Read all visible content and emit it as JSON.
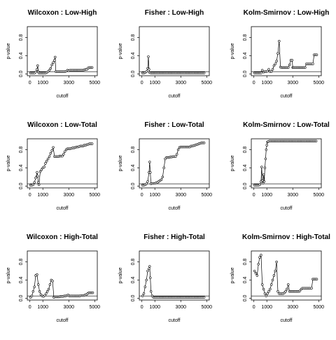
{
  "chart_data": [
    {
      "type": "line",
      "title": "Wilcoxon : Low-High",
      "xlabel": "cutoff",
      "ylabel": "p-value",
      "xlim": [
        0,
        5000
      ],
      "ylim": [
        0,
        1
      ],
      "xticks": [
        "0",
        "1000",
        "3000",
        "5000"
      ],
      "yticks": [
        "0.0",
        "0.4",
        "0.8"
      ],
      "hline": 0.05,
      "x": [
        50,
        150,
        250,
        350,
        450,
        550,
        600,
        650,
        700,
        800,
        900,
        1000,
        1100,
        1200,
        1300,
        1400,
        1500,
        1600,
        1700,
        1800,
        1900,
        1950,
        2000,
        2100,
        2200,
        2300,
        2400,
        2500,
        2600,
        2700,
        2800,
        2900,
        3000,
        3100,
        3200,
        3300,
        3400,
        3500,
        3600,
        3700,
        3800,
        3900,
        4000,
        4100,
        4200,
        4300,
        4400,
        4500,
        4600,
        4700,
        4800
      ],
      "y": [
        0.02,
        0.02,
        0.02,
        0.02,
        0.04,
        0.1,
        0.18,
        0.05,
        0.02,
        0.02,
        0.02,
        0.02,
        0.02,
        0.02,
        0.03,
        0.05,
        0.08,
        0.12,
        0.2,
        0.25,
        0.3,
        0.37,
        0.05,
        0.05,
        0.05,
        0.05,
        0.05,
        0.05,
        0.05,
        0.05,
        0.06,
        0.08,
        0.07,
        0.08,
        0.08,
        0.08,
        0.08,
        0.08,
        0.08,
        0.08,
        0.08,
        0.08,
        0.08,
        0.08,
        0.09,
        0.1,
        0.1,
        0.13,
        0.14,
        0.14,
        0.14
      ]
    },
    {
      "type": "line",
      "title": "Fisher : Low-High",
      "xlabel": "cutoff",
      "ylabel": "p-value",
      "xlim": [
        0,
        5000
      ],
      "ylim": [
        0,
        1
      ],
      "xticks": [
        "0",
        "1000",
        "3000",
        "5000"
      ],
      "yticks": [
        "0.0",
        "0.4",
        "0.8"
      ],
      "hline": 0.05,
      "x": [
        50,
        150,
        250,
        350,
        450,
        500,
        550,
        600,
        700,
        800,
        900,
        1000,
        1100,
        1200,
        1300,
        1400,
        1500,
        1600,
        1700,
        1800,
        1900,
        2000,
        2100,
        2200,
        2300,
        2400,
        2500,
        2600,
        2700,
        2800,
        2900,
        3000,
        3100,
        3200,
        3300,
        3400,
        3500,
        3600,
        3700,
        3800,
        3900,
        4000,
        4100,
        4200,
        4300,
        4400,
        4500,
        4600,
        4700,
        4800
      ],
      "y": [
        0.02,
        0.02,
        0.03,
        0.05,
        0.12,
        0.38,
        0.1,
        0.03,
        0.02,
        0.02,
        0.02,
        0.02,
        0.02,
        0.02,
        0.02,
        0.02,
        0.02,
        0.02,
        0.02,
        0.02,
        0.02,
        0.02,
        0.02,
        0.02,
        0.02,
        0.02,
        0.02,
        0.02,
        0.02,
        0.02,
        0.02,
        0.02,
        0.02,
        0.02,
        0.02,
        0.02,
        0.02,
        0.02,
        0.02,
        0.02,
        0.02,
        0.02,
        0.02,
        0.02,
        0.02,
        0.02,
        0.02,
        0.02,
        0.02,
        0.02
      ]
    },
    {
      "type": "line",
      "title": "Kolm-Smirnov : Low-High",
      "xlabel": "cutoff",
      "ylabel": "p-value",
      "xlim": [
        0,
        5000
      ],
      "ylim": [
        0,
        1
      ],
      "xticks": [
        "0",
        "1000",
        "3000",
        "5000"
      ],
      "yticks": [
        "0.0",
        "0.4",
        "0.8"
      ],
      "hline": 0.05,
      "x": [
        50,
        150,
        250,
        350,
        450,
        550,
        650,
        750,
        850,
        950,
        1050,
        1150,
        1250,
        1350,
        1450,
        1550,
        1650,
        1750,
        1850,
        1950,
        2050,
        2150,
        2250,
        2350,
        2450,
        2550,
        2650,
        2750,
        2850,
        2950,
        3000,
        3050,
        3150,
        3250,
        3350,
        3450,
        3550,
        3650,
        3750,
        3850,
        3950,
        4050,
        4150,
        4250,
        4350,
        4450,
        4550,
        4650,
        4750,
        4850
      ],
      "y": [
        0.02,
        0.02,
        0.02,
        0.02,
        0.02,
        0.02,
        0.08,
        0.04,
        0.05,
        0.05,
        0.06,
        0.1,
        0.05,
        0.05,
        0.1,
        0.18,
        0.22,
        0.28,
        0.45,
        0.72,
        0.15,
        0.14,
        0.14,
        0.14,
        0.14,
        0.14,
        0.14,
        0.2,
        0.3,
        0.3,
        0.14,
        0.14,
        0.14,
        0.14,
        0.14,
        0.14,
        0.14,
        0.14,
        0.14,
        0.14,
        0.14,
        0.22,
        0.22,
        0.22,
        0.22,
        0.22,
        0.22,
        0.42,
        0.42,
        0.42
      ]
    },
    {
      "type": "line",
      "title": "Wilcoxon : Low-Total",
      "xlabel": "cutoff",
      "ylabel": "p-value",
      "xlim": [
        0,
        5000
      ],
      "ylim": [
        0,
        1
      ],
      "xticks": [
        "0",
        "1000",
        "3000",
        "5000"
      ],
      "yticks": [
        "0.0",
        "0.4",
        "0.8"
      ],
      "hline": 0.05,
      "x": [
        50,
        150,
        250,
        350,
        450,
        550,
        600,
        650,
        700,
        800,
        900,
        1000,
        1100,
        1200,
        1300,
        1400,
        1500,
        1600,
        1700,
        1800,
        1900,
        2000,
        2100,
        2200,
        2300,
        2400,
        2500,
        2600,
        2700,
        2800,
        2900,
        3000,
        3100,
        3200,
        3300,
        3400,
        3500,
        3600,
        3700,
        3800,
        3900,
        4000,
        4100,
        4200,
        4300,
        4400,
        4500,
        4600,
        4700,
        4800
      ],
      "y": [
        0.02,
        0.02,
        0.03,
        0.08,
        0.18,
        0.3,
        0.22,
        0.08,
        0.03,
        0.32,
        0.36,
        0.4,
        0.42,
        0.5,
        0.55,
        0.6,
        0.65,
        0.72,
        0.78,
        0.85,
        0.65,
        0.65,
        0.65,
        0.65,
        0.66,
        0.66,
        0.66,
        0.7,
        0.76,
        0.8,
        0.82,
        0.82,
        0.82,
        0.83,
        0.84,
        0.84,
        0.85,
        0.86,
        0.86,
        0.87,
        0.88,
        0.88,
        0.88,
        0.9,
        0.9,
        0.91,
        0.92,
        0.93,
        0.93,
        0.93
      ]
    },
    {
      "type": "line",
      "title": "Fisher : Low-Total",
      "xlabel": "cutoff",
      "ylabel": "p-value",
      "xlim": [
        0,
        5000
      ],
      "ylim": [
        0,
        1
      ],
      "xticks": [
        "0",
        "1000",
        "3000",
        "5000"
      ],
      "yticks": [
        "0.0",
        "0.4",
        "0.8"
      ],
      "hline": 0.05,
      "x": [
        50,
        150,
        250,
        350,
        450,
        550,
        600,
        650,
        700,
        800,
        900,
        1000,
        1100,
        1200,
        1300,
        1400,
        1500,
        1600,
        1700,
        1800,
        1900,
        2000,
        2100,
        2200,
        2300,
        2400,
        2500,
        2600,
        2700,
        2800,
        2900,
        3000,
        3100,
        3200,
        3300,
        3400,
        3500,
        3600,
        3700,
        3800,
        3900,
        4000,
        4100,
        4200,
        4300,
        4400,
        4500,
        4600,
        4700,
        4800
      ],
      "y": [
        0.02,
        0.02,
        0.03,
        0.05,
        0.1,
        0.3,
        0.53,
        0.3,
        0.05,
        0.06,
        0.06,
        0.06,
        0.07,
        0.08,
        0.1,
        0.12,
        0.14,
        0.2,
        0.4,
        0.6,
        0.63,
        0.63,
        0.63,
        0.64,
        0.64,
        0.65,
        0.65,
        0.65,
        0.7,
        0.8,
        0.85,
        0.86,
        0.86,
        0.86,
        0.86,
        0.86,
        0.86,
        0.86,
        0.86,
        0.88,
        0.88,
        0.89,
        0.9,
        0.91,
        0.92,
        0.93,
        0.94,
        0.95,
        0.95,
        0.95
      ]
    },
    {
      "type": "line",
      "title": "Kolm-Smirnov : Low-Total",
      "xlabel": "cutoff",
      "ylabel": "p-value",
      "xlim": [
        0,
        5000
      ],
      "ylim": [
        0,
        1
      ],
      "xticks": [
        "0",
        "1000",
        "3000",
        "5000"
      ],
      "yticks": [
        "0.0",
        "0.4",
        "0.8"
      ],
      "hline": 0.05,
      "x": [
        50,
        150,
        250,
        350,
        450,
        550,
        600,
        650,
        700,
        750,
        800,
        850,
        900,
        950,
        1000,
        1050,
        1100,
        1200,
        1300,
        1400,
        1500,
        1600,
        1700,
        1800,
        1900,
        2000,
        2100,
        2200,
        2300,
        2400,
        2500,
        2600,
        2700,
        2800,
        2900,
        3000,
        3100,
        3200,
        3300,
        3400,
        3500,
        3600,
        3700,
        3800,
        3900,
        4000,
        4100,
        4200,
        4300,
        4400,
        4500,
        4600,
        4700,
        4800
      ],
      "y": [
        0.02,
        0.02,
        0.02,
        0.02,
        0.03,
        0.1,
        0.42,
        0.12,
        0.06,
        0.25,
        0.1,
        0.4,
        0.6,
        0.8,
        0.9,
        0.97,
        0.98,
        0.99,
        0.99,
        0.99,
        0.99,
        0.99,
        0.99,
        0.99,
        0.99,
        0.99,
        0.99,
        0.99,
        0.99,
        0.99,
        0.99,
        0.99,
        0.99,
        0.99,
        0.99,
        0.99,
        0.99,
        0.99,
        0.99,
        0.99,
        0.99,
        0.99,
        0.99,
        0.99,
        0.99,
        0.99,
        0.99,
        0.99,
        0.99,
        0.99,
        0.99,
        0.99,
        0.99,
        0.99
      ]
    },
    {
      "type": "line",
      "title": "Wilcoxon : High-Total",
      "xlabel": "cutoff",
      "ylabel": "p-value",
      "xlim": [
        0,
        5000
      ],
      "ylim": [
        0,
        1
      ],
      "xticks": [
        "0",
        "1000",
        "3000",
        "5000"
      ],
      "yticks": [
        "0.0",
        "0.4",
        "0.8"
      ],
      "hline": 0.05,
      "x": [
        50,
        150,
        250,
        350,
        450,
        550,
        650,
        750,
        850,
        950,
        1050,
        1150,
        1250,
        1350,
        1450,
        1550,
        1650,
        1750,
        1850,
        1950,
        2050,
        2150,
        2250,
        2350,
        2450,
        2550,
        2650,
        2750,
        2850,
        2950,
        3050,
        3150,
        3250,
        3350,
        3450,
        3550,
        3650,
        3750,
        3850,
        3950,
        4050,
        4150,
        4250,
        4350,
        4450,
        4550,
        4650,
        4750,
        4850
      ],
      "y": [
        0.02,
        0.05,
        0.15,
        0.25,
        0.5,
        0.52,
        0.3,
        0.15,
        0.08,
        0.05,
        0.04,
        0.06,
        0.1,
        0.15,
        0.2,
        0.3,
        0.4,
        0.38,
        0.02,
        0.03,
        0.03,
        0.03,
        0.03,
        0.04,
        0.04,
        0.04,
        0.05,
        0.05,
        0.06,
        0.07,
        0.05,
        0.05,
        0.05,
        0.05,
        0.05,
        0.05,
        0.05,
        0.05,
        0.05,
        0.06,
        0.06,
        0.06,
        0.07,
        0.08,
        0.1,
        0.12,
        0.12,
        0.12,
        0.12
      ]
    },
    {
      "type": "line",
      "title": "Fisher : High-Total",
      "xlabel": "cutoff",
      "ylabel": "p-value",
      "xlim": [
        0,
        5000
      ],
      "ylim": [
        0,
        1
      ],
      "xticks": [
        "0",
        "1000",
        "3000",
        "5000"
      ],
      "yticks": [
        "0.0",
        "0.4",
        "0.8"
      ],
      "hline": 0.05,
      "x": [
        50,
        150,
        250,
        350,
        450,
        550,
        600,
        650,
        700,
        800,
        900,
        1000,
        1100,
        1200,
        1300,
        1400,
        1500,
        1600,
        1700,
        1800,
        1900,
        2000,
        2100,
        2200,
        2300,
        2400,
        2500,
        2600,
        2700,
        2800,
        2900,
        3000,
        3100,
        3200,
        3300,
        3400,
        3500,
        3600,
        3700,
        3800,
        3900,
        4000,
        4100,
        4200,
        4300,
        4400,
        4500,
        4600,
        4700,
        4800
      ],
      "y": [
        0.05,
        0.1,
        0.25,
        0.4,
        0.6,
        0.65,
        0.7,
        0.45,
        0.15,
        0.05,
        0.02,
        0.02,
        0.02,
        0.02,
        0.02,
        0.02,
        0.02,
        0.02,
        0.02,
        0.02,
        0.02,
        0.02,
        0.02,
        0.02,
        0.02,
        0.02,
        0.02,
        0.02,
        0.02,
        0.02,
        0.02,
        0.02,
        0.02,
        0.02,
        0.02,
        0.02,
        0.02,
        0.02,
        0.02,
        0.02,
        0.02,
        0.02,
        0.02,
        0.02,
        0.02,
        0.02,
        0.02,
        0.02,
        0.02,
        0.02
      ]
    },
    {
      "type": "line",
      "title": "Kolm-Smirnov : High-Total",
      "xlabel": "cutoff",
      "ylabel": "p-value",
      "xlim": [
        0,
        5000
      ],
      "ylim": [
        0,
        1
      ],
      "xticks": [
        "0",
        "1000",
        "3000",
        "5000"
      ],
      "yticks": [
        "0.0",
        "0.4",
        "0.8"
      ],
      "hline": 0.05,
      "x": [
        50,
        150,
        250,
        350,
        450,
        550,
        650,
        750,
        850,
        950,
        1050,
        1150,
        1250,
        1350,
        1450,
        1550,
        1650,
        1750,
        1850,
        1950,
        2050,
        2150,
        2250,
        2350,
        2450,
        2550,
        2650,
        2750,
        2850,
        2950,
        3050,
        3150,
        3250,
        3350,
        3450,
        3550,
        3650,
        3750,
        3850,
        3950,
        4050,
        4150,
        4250,
        4350,
        4450,
        4550,
        4650,
        4750,
        4850
      ],
      "y": [
        0.6,
        0.55,
        0.5,
        0.75,
        0.9,
        0.95,
        0.3,
        0.2,
        0.1,
        0.05,
        0.1,
        0.15,
        0.2,
        0.3,
        0.4,
        0.5,
        0.6,
        0.8,
        0.15,
        0.1,
        0.1,
        0.1,
        0.1,
        0.12,
        0.15,
        0.2,
        0.3,
        0.15,
        0.15,
        0.15,
        0.15,
        0.15,
        0.15,
        0.15,
        0.15,
        0.16,
        0.2,
        0.22,
        0.22,
        0.22,
        0.22,
        0.22,
        0.22,
        0.22,
        0.22,
        0.42,
        0.42,
        0.42,
        0.42
      ]
    }
  ]
}
